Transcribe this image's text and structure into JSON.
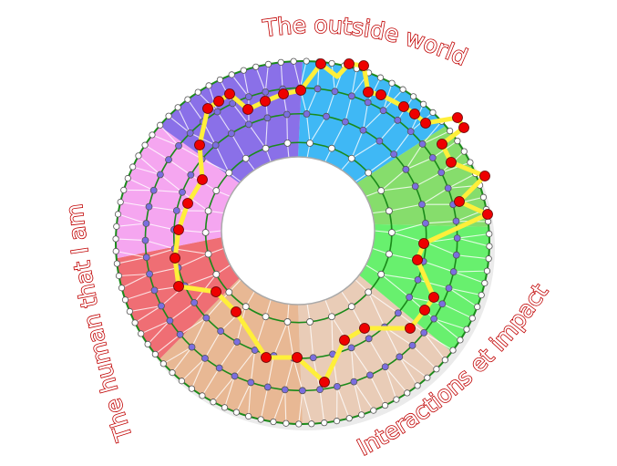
{
  "labels": {
    "top": "The outside world",
    "left": "The human that I am",
    "bottom_right": "Interactions et impact"
  },
  "colors": {
    "sectors": [
      "#3fb8f5",
      "#86dd6c",
      "#68f06e",
      "#e9ccb7",
      "#e8b894",
      "#ef6e74",
      "#f5a6f0",
      "#8a70e8"
    ],
    "ring_line": "#1a8a1a",
    "path": "#ffef3a",
    "highlight_node": "#ee0000",
    "mid_node": "#7b6ee0",
    "plain_node": "#ffffff",
    "label_outline": "#c00000"
  }
}
